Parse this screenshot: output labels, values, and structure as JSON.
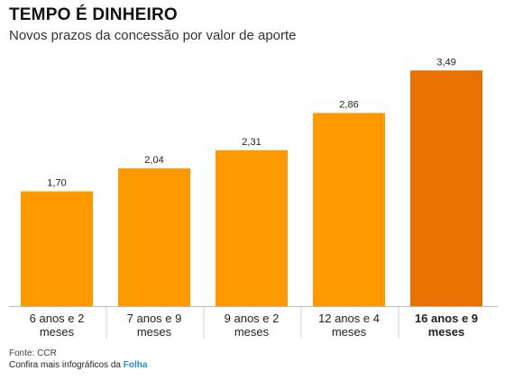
{
  "header": {
    "title": "TEMPO É DINHEIRO",
    "subtitle": "Novos prazos da concessão por valor de aporte"
  },
  "footer": {
    "source": "Fonte: CCR",
    "more_prefix": "Confira mais infográficos da ",
    "brand": "Folha"
  },
  "colors": {
    "bar": "#ff9900",
    "bar_highlight": "#e87000",
    "baseline": "#bbbbbb",
    "divider": "#cccccc"
  },
  "chart_data": {
    "type": "bar",
    "title": "TEMPO É DINHEIRO",
    "subtitle": "Novos prazos da concessão por valor de aporte",
    "categories": [
      [
        "6 anos e 2",
        "meses"
      ],
      [
        "7 anos e 9",
        "meses"
      ],
      [
        "9 anos e 2",
        "meses"
      ],
      [
        "12 anos e 4",
        "meses"
      ],
      [
        "16 anos e 9",
        "meses"
      ]
    ],
    "values": [
      1.7,
      2.04,
      2.31,
      2.86,
      3.49
    ],
    "value_labels": [
      "1,70",
      "2,04",
      "2,31",
      "2,86",
      "3,49"
    ],
    "highlight_index": 4,
    "ylim": [
      0,
      3.6
    ],
    "grid": false,
    "legend": "none"
  }
}
